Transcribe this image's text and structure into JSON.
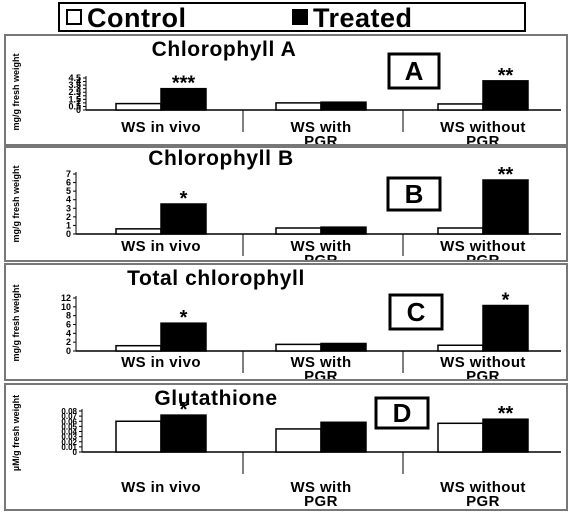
{
  "legend": {
    "control_label": "Control",
    "treated_label": "Treated",
    "control_color": "#ffffff",
    "treated_color": "#000000"
  },
  "chart_data": [
    {
      "type": "bar",
      "title": "Chlorophyll A",
      "panel_label": "A",
      "ylabel": "mg/g fresh weight",
      "categories": [
        [
          "WS in vivo"
        ],
        [
          "WS with",
          "PGR"
        ],
        [
          "WS without",
          "PGR"
        ]
      ],
      "ylim": [
        0,
        4.5
      ],
      "yticks": [
        "0",
        "0.5",
        "1",
        "1.5",
        "2",
        "2.5",
        "3",
        "3.5",
        "4",
        "4.5"
      ],
      "series": [
        {
          "name": "Control",
          "values": [
            0.9,
            1.0,
            0.85
          ]
        },
        {
          "name": "Treated",
          "values": [
            3.0,
            1.1,
            4.1
          ]
        }
      ],
      "annotations": [
        "***",
        "",
        "**"
      ]
    },
    {
      "type": "bar",
      "title": "Chlorophyll B",
      "panel_label": "B",
      "ylabel": "mg/g fresh weight",
      "categories": [
        [
          "WS in vivo"
        ],
        [
          "WS with",
          "PGR"
        ],
        [
          "WS without",
          "PGR"
        ]
      ],
      "ylim": [
        0,
        7
      ],
      "yticks": [
        "0",
        "1",
        "2",
        "3",
        "4",
        "5",
        "6",
        "7"
      ],
      "series": [
        {
          "name": "Control",
          "values": [
            0.6,
            0.7,
            0.7
          ]
        },
        {
          "name": "Treated",
          "values": [
            3.5,
            0.8,
            6.3
          ]
        }
      ],
      "annotations": [
        "*",
        "",
        "**"
      ]
    },
    {
      "type": "bar",
      "title": "Total chlorophyll",
      "panel_label": "C",
      "ylabel": "mg/g fresh weight",
      "categories": [
        [
          "WS in vivo"
        ],
        [
          "WS with",
          "PGR"
        ],
        [
          "WS without",
          "PGR"
        ]
      ],
      "ylim": [
        0,
        12
      ],
      "yticks": [
        "0",
        "2",
        "4",
        "6",
        "8",
        "10",
        "12"
      ],
      "series": [
        {
          "name": "Control",
          "values": [
            1.2,
            1.5,
            1.3
          ]
        },
        {
          "name": "Treated",
          "values": [
            6.3,
            1.7,
            10.3
          ]
        }
      ],
      "annotations": [
        "*",
        "",
        "*"
      ]
    },
    {
      "type": "bar",
      "title": "Glutathione",
      "panel_label": "D",
      "ylabel": "µM/g fresh weight",
      "categories": [
        [
          "WS in vivo"
        ],
        [
          "WS with",
          "PGR"
        ],
        [
          "WS without",
          "PGR"
        ]
      ],
      "ylim": [
        0,
        0.08
      ],
      "yticks": [
        "0",
        "0.01",
        "0.02",
        "0.03",
        "0.04",
        "0.05",
        "0.06",
        "0.07",
        "0.08"
      ],
      "series": [
        {
          "name": "Control",
          "values": [
            0.06,
            0.045,
            0.056
          ]
        },
        {
          "name": "Treated",
          "values": [
            0.072,
            0.058,
            0.064
          ]
        }
      ],
      "annotations": [
        "*",
        "",
        "**"
      ]
    }
  ]
}
